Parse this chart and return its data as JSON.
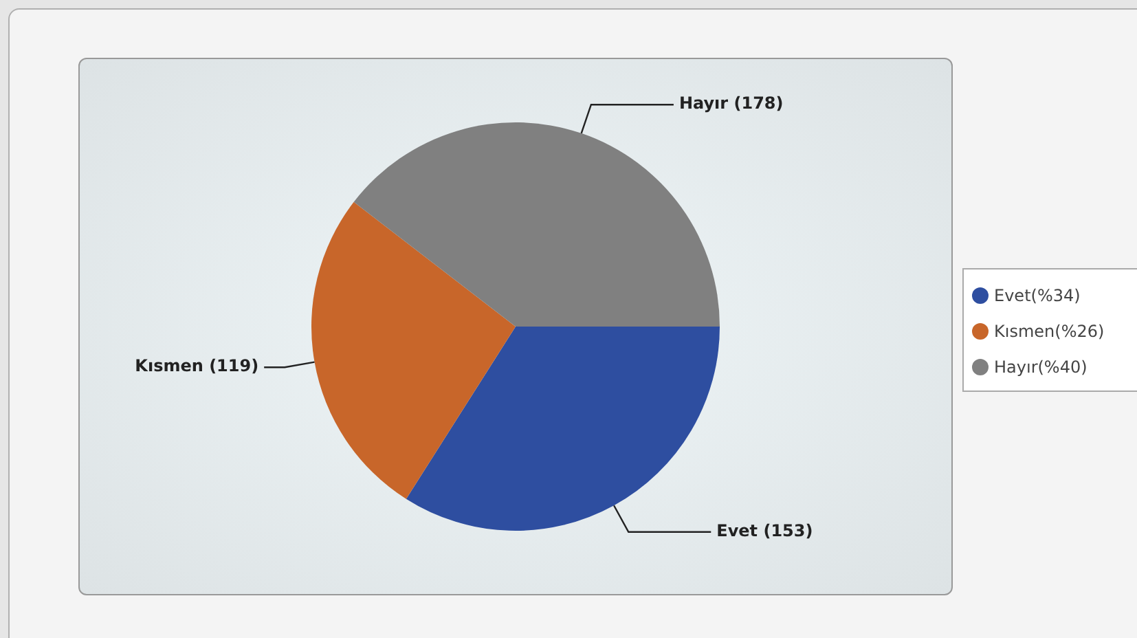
{
  "chart_data": {
    "type": "pie",
    "categories": [
      "Evet(%34)",
      "Kısmen(%26)",
      "Hayır(%40)"
    ],
    "values": [
      153,
      119,
      178
    ],
    "colors": [
      "#2e4ea0",
      "#c8662a",
      "#808080"
    ],
    "value_labels": [
      "Evet (153)",
      "Kısmen (119)",
      "Hayır (178)"
    ],
    "legend": "right"
  }
}
